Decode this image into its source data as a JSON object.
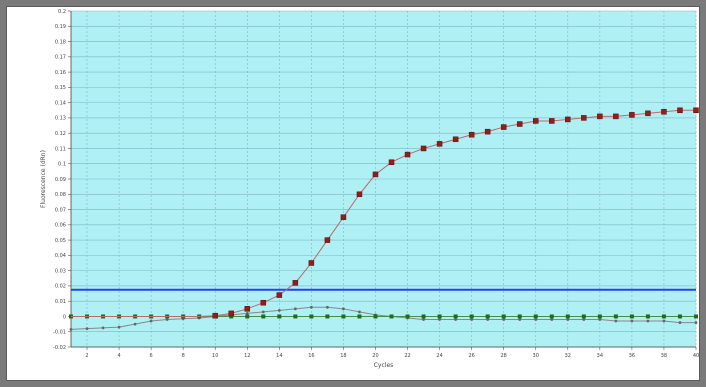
{
  "chart_data": {
    "type": "line",
    "xlabel": "Cycles",
    "ylabel": "Fluorescence (dRn)",
    "xlim": [
      1,
      40
    ],
    "ylim": [
      -0.02,
      0.2
    ],
    "x_ticks": [
      2,
      4,
      6,
      8,
      10,
      12,
      14,
      16,
      18,
      20,
      22,
      24,
      26,
      28,
      30,
      32,
      34,
      36,
      38,
      40
    ],
    "y_ticks": [
      -0.02,
      -0.01,
      0,
      0.01,
      0.02,
      0.03,
      0.04,
      0.05,
      0.06,
      0.07,
      0.08,
      0.09,
      0.1,
      0.11,
      0.12,
      0.13,
      0.14,
      0.15,
      0.16,
      0.17,
      0.18,
      0.19,
      0.2
    ],
    "grid": true,
    "threshold": 0.0175,
    "colors": {
      "plot_background": "#aff0f4",
      "threshold": "#2244ee",
      "amplification": "#9a1a1a",
      "green_series": "#1f6b1f",
      "gray_series": "#666666"
    },
    "series": [
      {
        "color": "#9a1a1a",
        "x": [
          1,
          2,
          3,
          4,
          5,
          6,
          7,
          8,
          9,
          10,
          11,
          12,
          13,
          14,
          15,
          16,
          17,
          18,
          19,
          20,
          21,
          22,
          23,
          24,
          25,
          26,
          27,
          28,
          29,
          30,
          31,
          32,
          33,
          34,
          35,
          36,
          37,
          38,
          39,
          40
        ],
        "values": [
          0,
          0,
          0,
          0,
          0,
          0,
          0,
          0,
          0,
          0.0005,
          0.002,
          0.005,
          0.009,
          0.014,
          0.022,
          0.035,
          0.05,
          0.065,
          0.08,
          0.093,
          0.101,
          0.106,
          0.11,
          0.113,
          0.116,
          0.119,
          0.121,
          0.124,
          0.126,
          0.128,
          0.128,
          0.129,
          0.13,
          0.131,
          0.131,
          0.132,
          0.133,
          0.134,
          0.135,
          0.135
        ]
      },
      {
        "color": "#1f6b1f",
        "x": [
          1,
          2,
          3,
          4,
          5,
          6,
          7,
          8,
          9,
          10,
          11,
          12,
          13,
          14,
          15,
          16,
          17,
          18,
          19,
          20,
          21,
          22,
          23,
          24,
          25,
          26,
          27,
          28,
          29,
          30,
          31,
          32,
          33,
          34,
          35,
          36,
          37,
          38,
          39,
          40
        ],
        "values": [
          0,
          0,
          0,
          0,
          0,
          0,
          0,
          0,
          0,
          0,
          0,
          0,
          0,
          0,
          0,
          0,
          0,
          0,
          0,
          0,
          0,
          0,
          0,
          0,
          0,
          0,
          0,
          0,
          0,
          0,
          0,
          0,
          0,
          0,
          0,
          0,
          0,
          0,
          0,
          0
        ]
      },
      {
        "color": "#666666",
        "x": [
          1,
          2,
          3,
          4,
          5,
          6,
          7,
          8,
          9,
          10,
          11,
          12,
          13,
          14,
          15,
          16,
          17,
          18,
          19,
          20,
          21,
          22,
          23,
          24,
          25,
          26,
          27,
          28,
          29,
          30,
          31,
          32,
          33,
          34,
          35,
          36,
          37,
          38,
          39,
          40
        ],
        "values": [
          -0.0085,
          -0.008,
          -0.0075,
          -0.007,
          -0.005,
          -0.003,
          -0.002,
          -0.0015,
          -0.001,
          0,
          0.001,
          0.002,
          0.003,
          0.004,
          0.005,
          0.006,
          0.006,
          0.005,
          0.003,
          0.001,
          0,
          -0.001,
          -0.002,
          -0.002,
          -0.002,
          -0.002,
          -0.002,
          -0.002,
          -0.002,
          -0.002,
          -0.002,
          -0.002,
          -0.002,
          -0.002,
          -0.003,
          -0.003,
          -0.003,
          -0.003,
          -0.004,
          -0.004
        ]
      }
    ]
  }
}
